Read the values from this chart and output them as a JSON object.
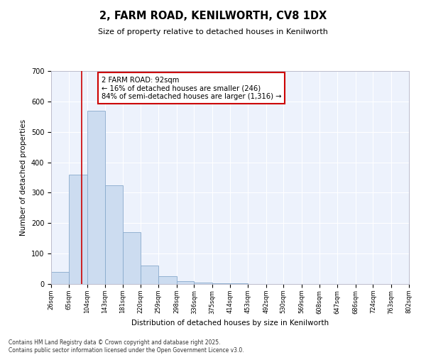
{
  "title": "2, FARM ROAD, KENILWORTH, CV8 1DX",
  "subtitle": "Size of property relative to detached houses in Kenilworth",
  "xlabel": "Distribution of detached houses by size in Kenilworth",
  "ylabel": "Number of detached properties",
  "bar_color": "#ccdcf0",
  "bar_edge_color": "#88aacc",
  "background_color": "#edf2fc",
  "grid_color": "#ffffff",
  "bin_edges": [
    26,
    65,
    104,
    143,
    181,
    220,
    259,
    298,
    336,
    375,
    414,
    453,
    492,
    530,
    569,
    608,
    647,
    686,
    724,
    763,
    802
  ],
  "bin_labels": [
    "26sqm",
    "65sqm",
    "104sqm",
    "143sqm",
    "181sqm",
    "220sqm",
    "259sqm",
    "298sqm",
    "336sqm",
    "375sqm",
    "414sqm",
    "453sqm",
    "492sqm",
    "530sqm",
    "569sqm",
    "608sqm",
    "647sqm",
    "686sqm",
    "724sqm",
    "763sqm",
    "802sqm"
  ],
  "bar_heights": [
    40,
    360,
    570,
    325,
    170,
    60,
    25,
    10,
    5,
    2,
    2,
    0,
    0,
    0,
    0,
    0,
    0,
    0,
    0,
    0,
    5
  ],
  "ylim": [
    0,
    700
  ],
  "yticks": [
    0,
    100,
    200,
    300,
    400,
    500,
    600,
    700
  ],
  "property_line_x": 92,
  "property_line_color": "#cc0000",
  "annotation_title": "2 FARM ROAD: 92sqm",
  "annotation_line1": "← 16% of detached houses are smaller (246)",
  "annotation_line2": "84% of semi-detached houses are larger (1,316) →",
  "annotation_box_color": "#cc0000",
  "footer1": "Contains HM Land Registry data © Crown copyright and database right 2025.",
  "footer2": "Contains public sector information licensed under the Open Government Licence v3.0."
}
